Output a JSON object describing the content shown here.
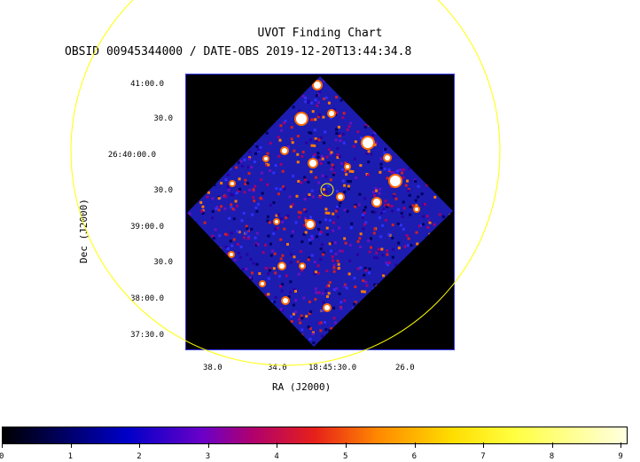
{
  "title": "UVOT Finding Chart",
  "subtitle": "OBSID 00945344000 / DATE-OBS 2019-12-20T13:44:34.8",
  "xlabel": "RA (J2000)",
  "ylabel": "Dec (J2000)",
  "yticks": [
    "41:00.0",
    "30.0",
    "26:40:00.0",
    "30.0",
    "39:00.0",
    "30.0",
    "38:00.0",
    "37:30.0"
  ],
  "xticks": [
    "38.0",
    "34.0",
    "18:45:30.0",
    "26.0"
  ],
  "colorbar": {
    "ticks": [
      "0",
      "1",
      "2",
      "3",
      "4",
      "5",
      "6",
      "7",
      "8",
      "9"
    ],
    "colormap": "heat-blue"
  },
  "colors": {
    "circle": "#ffff00",
    "frame": "#3a3aff"
  }
}
